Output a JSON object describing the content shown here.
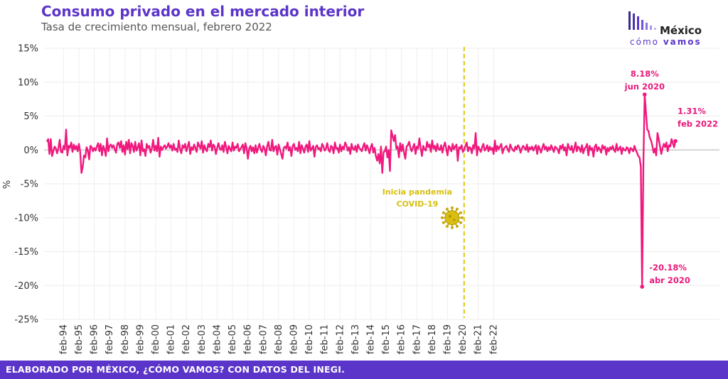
{
  "header": {
    "title": "Consumo privado en el mercado interior",
    "subtitle": "Tasa de crecimiento mensual, febrero 2022"
  },
  "logo": {
    "main": "México",
    "sub_a": "cómo",
    "sub_b": "vamos"
  },
  "footer": {
    "text": "ELABORADO POR MÉXICO, ¿CÓMO VAMOS? CON DATOS DEL INEGI."
  },
  "colors": {
    "line": "#f0187d",
    "accent": "#5b35c9",
    "covid": "#e0c60c"
  },
  "chart_data": {
    "type": "line",
    "ylabel": "%",
    "ylim": [
      -25,
      15
    ],
    "yticks": [
      "15%",
      "10%",
      "5%",
      "0%",
      "-5%",
      "-10%",
      "-15%",
      "-20%",
      "-25%"
    ],
    "ytick_values": [
      15,
      10,
      5,
      0,
      -5,
      -10,
      -15,
      -20,
      -25
    ],
    "xticks": [
      "feb-94",
      "feb-95",
      "feb-96",
      "feb-97",
      "feb-98",
      "feb-99",
      "feb-00",
      "feb-01",
      "feb-02",
      "feb-03",
      "feb-04",
      "feb-05",
      "feb-06",
      "feb-07",
      "feb-08",
      "feb-09",
      "feb-10",
      "feb-11",
      "feb-12",
      "feb-13",
      "feb-14",
      "feb-15",
      "feb-16",
      "feb-17",
      "feb-18",
      "feb-19",
      "feb-20",
      "feb-21",
      "feb-22"
    ],
    "x_start": "ene-93",
    "x_end": "feb-22",
    "series": [
      {
        "values": [
          1.2,
          1.6,
          -0.6,
          1.6,
          -0.9,
          -0.2,
          0.5,
          0.2,
          -0.5,
          0.3,
          1.5,
          -0.3,
          -0.4,
          0.6,
          0.1,
          3.0,
          -0.8,
          0.6,
          0.3,
          1.1,
          -0.3,
          0.8,
          0.1,
          0.6,
          -0.2,
          0.9,
          -0.3,
          -3.4,
          -2.5,
          -0.8,
          -1.1,
          0.4,
          -0.1,
          -1.4,
          0.6,
          0.4,
          -0.2,
          0.3,
          -0.1,
          0.5,
          1.0,
          -0.2,
          0.9,
          -0.8,
          0.6,
          0.1,
          -0.9,
          1.7,
          -0.2,
          0.6,
          0.8,
          0.3,
          0.7,
          0.1,
          -0.4,
          0.9,
          1.1,
          0.3,
          1.3,
          -0.3,
          0.7,
          -0.7,
          1.2,
          0.1,
          1.5,
          -0.5,
          1.0,
          0.6,
          -0.3,
          1.2,
          -0.1,
          0.4,
          1.0,
          -0.8,
          1.4,
          -0.2,
          0.1,
          -0.9,
          0.9,
          0.3,
          0.6,
          -0.4,
          0.2,
          1.5,
          -0.1,
          0.6,
          -0.2,
          1.8,
          -1.0,
          0.5,
          0.0,
          0.4,
          0.7,
          0.2,
          0.5,
          1.0,
          0.3,
          0.7,
          -0.1,
          0.9,
          0.0,
          0.2,
          -0.3,
          1.4,
          0.2,
          -0.5,
          0.7,
          0.3,
          0.9,
          -0.2,
          0.5,
          1.2,
          -0.6,
          0.4,
          0.0,
          0.8,
          0.3,
          -0.3,
          1.1,
          0.6,
          0.2,
          1.3,
          -0.4,
          0.7,
          0.1,
          -0.2,
          0.9,
          0.4,
          1.4,
          -0.1,
          0.8,
          0.5,
          -0.6,
          0.3,
          1.0,
          0.2,
          0.0,
          0.7,
          -0.3,
          1.2,
          0.4,
          -0.5,
          0.6,
          0.2,
          -0.2,
          1.1,
          -0.1,
          0.5,
          0.3,
          0.9,
          -0.2,
          0.1,
          0.4,
          0.8,
          -0.5,
          1.0,
          0.3,
          -1.3,
          0.2,
          0.6,
          -0.2,
          0.4,
          -0.5,
          0.7,
          -0.4,
          0.3,
          0.9,
          0.1,
          -0.3,
          0.6,
          0.2,
          -0.8,
          0.5,
          1.2,
          0.0,
          -0.1,
          1.5,
          -0.2,
          0.4,
          0.6,
          -0.7,
          0.8,
          0.1,
          -0.6,
          -1.3,
          0.3,
          0.5,
          0.2,
          1.1,
          -0.1,
          0.4,
          -0.9,
          0.6,
          0.9,
          0.0,
          0.3,
          -0.2,
          1.2,
          -0.5,
          0.7,
          0.2,
          -0.4,
          0.5,
          0.8,
          -0.3,
          1.3,
          -0.1,
          0.2,
          0.6,
          -1.0,
          0.4,
          0.7,
          0.1,
          0.3,
          -0.2,
          0.9,
          0.5,
          -0.1,
          0.2,
          1.0,
          0.0,
          -0.3,
          0.6,
          0.4,
          -0.5,
          1.1,
          0.2,
          0.3,
          -0.4,
          0.8,
          -0.2,
          0.5,
          0.1,
          1.1,
          0.7,
          -0.1,
          0.4,
          -0.6,
          0.9,
          0.2,
          0.0,
          0.6,
          -0.3,
          0.8,
          0.3,
          0.1,
          -0.2,
          0.5,
          1.0,
          -0.1,
          0.7,
          0.2,
          -0.5,
          0.4,
          0.9,
          -0.4,
          0.3,
          -0.9,
          -1.6,
          -0.6,
          -2.0,
          0.5,
          -3.4,
          -0.3,
          -0.2,
          0.5,
          -1.1,
          0.0,
          -3.1,
          2.9,
          2.1,
          1.3,
          2.2,
          0.2,
          0.5,
          -1.1,
          1.0,
          -0.2,
          0.8,
          -0.4,
          -1.3,
          0.5,
          0.7,
          1.2,
          0.3,
          -0.2,
          0.4,
          0.9,
          -0.6,
          0.5,
          0.2,
          1.7,
          0.3,
          -0.9,
          0.6,
          0.1,
          -0.1,
          1.2,
          0.4,
          0.8,
          -0.3,
          1.4,
          0.2,
          0.6,
          -0.2,
          0.9,
          0.1,
          0.0,
          0.7,
          -0.4,
          0.5,
          1.1,
          0.2,
          -0.8,
          0.6,
          0.3,
          -0.2,
          0.9,
          0.1,
          0.5,
          0.8,
          -1.6,
          0.4,
          0.2,
          0.7,
          -0.3,
          0.0,
          0.6,
          1.1,
          -0.2,
          0.4,
          0.3,
          -0.5,
          0.7,
          0.2,
          2.5,
          -0.8,
          0.5,
          0.1,
          -0.3,
          0.4,
          0.9,
          -0.1,
          0.2,
          0.7,
          -0.2,
          0.5,
          0.0,
          0.3,
          -0.6,
          1.4,
          -0.2,
          0.6,
          0.1,
          0.5,
          0.9,
          -0.5,
          0.2,
          0.4,
          0.6,
          0.1,
          -0.3,
          0.8,
          0.3,
          0.0,
          -0.2,
          0.5,
          0.1,
          0.7,
          0.4,
          -0.4,
          0.2,
          0.6,
          0.3,
          0.0,
          0.8,
          -0.3,
          0.4,
          0.1,
          0.5,
          -0.1,
          0.3,
          0.7,
          -0.6,
          0.6,
          0.2,
          -0.4,
          0.3,
          0.9,
          0.1,
          0.5,
          -0.2,
          0.4,
          0.0,
          0.7,
          0.2,
          -0.3,
          0.5,
          0.3,
          0.1,
          -0.5,
          0.6,
          0.2,
          0.8,
          -0.1,
          0.4,
          -0.8,
          0.9,
          0.3,
          0.0,
          0.6,
          -0.4,
          0.2,
          1.1,
          -0.2,
          0.5,
          0.3,
          -0.3,
          0.7,
          -0.5,
          0.2,
          0.4,
          0.9,
          -0.8,
          0.6,
          0.0,
          0.3,
          -1.0,
          0.5,
          0.8,
          -0.2,
          0.4,
          0.1,
          -0.4,
          0.7,
          0.2,
          0.5,
          -0.7,
          0.3,
          -0.2,
          0.4,
          0.1,
          0.6,
          0.0,
          -0.3,
          0.9,
          -0.1,
          0.2,
          0.5,
          -0.6,
          0.3,
          0.0,
          -0.1,
          0.4,
          0.2,
          -0.5,
          0.3,
          0.1,
          -0.2,
          0.6,
          0.0,
          -0.4,
          -0.9,
          -1.1,
          -2.5,
          -20.18,
          -2.0,
          8.18,
          5.6,
          3.0,
          2.8,
          1.8,
          1.4,
          0.6,
          -0.4,
          0.2,
          -0.8,
          2.5,
          1.6,
          0.5,
          -0.6,
          0.3,
          0.9,
          0.4,
          1.1,
          -0.2,
          0.7,
          0.5,
          1.6,
          1.0,
          0.4,
          1.31
        ]
      }
    ],
    "annotations": {
      "peak": {
        "value": "8.18%",
        "date": "jun 2020"
      },
      "trough": {
        "value": "-20.18%",
        "date": "abr 2020"
      },
      "last": {
        "value": "1.31%",
        "date": "feb 2022"
      },
      "covid": {
        "line1": "Inicia pandemia",
        "line2": "COVID-19",
        "at": "mar-20"
      }
    }
  }
}
